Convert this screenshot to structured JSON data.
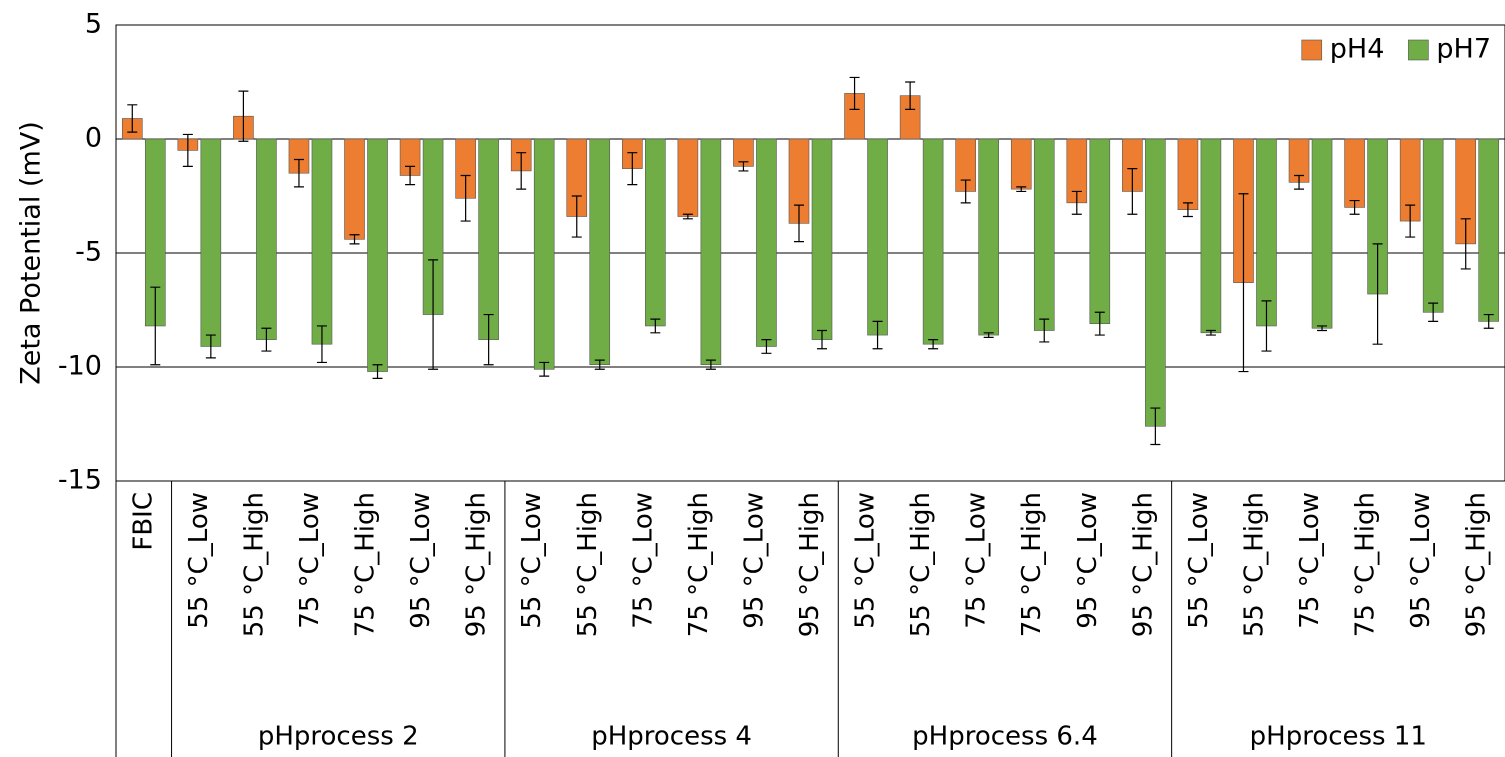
{
  "chart_data": {
    "type": "bar",
    "y_label": "Zeta Potential (mV)",
    "groups": [
      {
        "categories": [
          "FBIC"
        ]
      },
      {
        "name": "pHprocess 2",
        "categories": [
          "55 °C_Low",
          "55 °C_High",
          "75 °C_Low",
          "75 °C_High",
          "95 °C_Low",
          "95 °C_High"
        ]
      },
      {
        "name": "pHprocess 4",
        "categories": [
          "55 °C_Low",
          "55 °C_High",
          "75 °C_Low",
          "75 °C_High",
          "95 °C_Low",
          "95 °C_High"
        ]
      },
      {
        "name": "pHprocess 6.4",
        "categories": [
          "55 °C_Low",
          "55 °C_High",
          "75 °C_Low",
          "75 °C_High",
          "95 °C_Low",
          "95 °C_High"
        ]
      },
      {
        "name": "pHprocess 11",
        "categories": [
          "55 °C_Low",
          "55 °C_High",
          "75 °C_Low",
          "75 °C_High",
          "95 °C_Low",
          "95 °C_High"
        ]
      }
    ],
    "series": [
      {
        "name": "pH4",
        "color": "#ed7d31",
        "values": [
          0.9,
          -0.5,
          1.0,
          -1.5,
          -4.4,
          -1.6,
          -2.6,
          -1.4,
          -3.4,
          -1.3,
          -3.4,
          -1.2,
          -3.7,
          2.0,
          1.9,
          -2.3,
          -2.2,
          -2.8,
          -2.3,
          -3.1,
          -6.3,
          -1.9,
          -3.0,
          -3.6,
          -4.6
        ],
        "errors": [
          0.6,
          0.7,
          1.1,
          0.6,
          0.2,
          0.4,
          1.0,
          0.8,
          0.9,
          0.7,
          0.1,
          0.2,
          0.8,
          0.7,
          0.6,
          0.5,
          0.1,
          0.5,
          1.0,
          0.3,
          3.9,
          0.3,
          0.3,
          0.7,
          1.1
        ]
      },
      {
        "name": "pH7",
        "color": "#70ad47",
        "values": [
          -8.2,
          -9.1,
          -8.8,
          -9.0,
          -10.2,
          -7.7,
          -8.8,
          -10.1,
          -9.9,
          -8.2,
          -9.9,
          -9.1,
          -8.8,
          -8.6,
          -9.0,
          -8.6,
          -8.4,
          -8.1,
          -12.6,
          -8.5,
          -8.2,
          -8.3,
          -6.8,
          -7.6,
          -8.0
        ],
        "errors": [
          1.7,
          0.5,
          0.5,
          0.8,
          0.3,
          2.4,
          1.1,
          0.3,
          0.2,
          0.3,
          0.2,
          0.3,
          0.4,
          0.6,
          0.2,
          0.1,
          0.5,
          0.5,
          0.8,
          0.1,
          1.1,
          0.1,
          2.2,
          0.4,
          0.3
        ]
      }
    ],
    "ylim": [
      -15,
      5
    ],
    "yticks": [
      -15,
      -10,
      -5,
      0,
      5
    ],
    "grid": true,
    "legend": "top-right"
  }
}
